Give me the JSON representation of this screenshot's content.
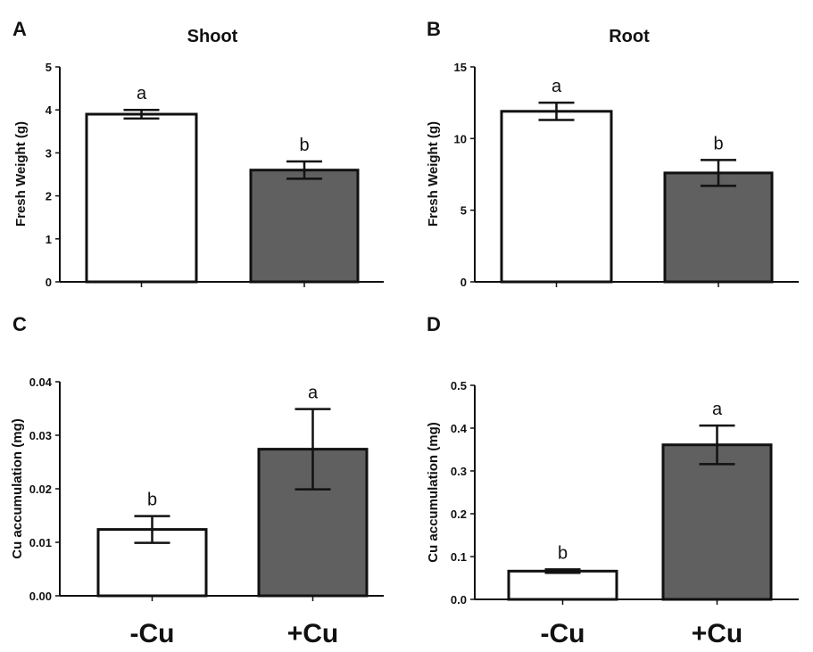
{
  "chart_data": [
    {
      "type": "bar",
      "panel": "A",
      "title": "Shoot",
      "ylabel": "Fresh Weight (g)",
      "categories": [
        "-Cu",
        "+Cu"
      ],
      "values": [
        3.9,
        2.6
      ],
      "errors": [
        0.1,
        0.2
      ],
      "significance": [
        "a",
        "b"
      ],
      "ylim": [
        0,
        5
      ],
      "yticks": [
        "0",
        "1",
        "2",
        "3",
        "4",
        "5"
      ],
      "colors": [
        "#ffffff",
        "#606060"
      ]
    },
    {
      "type": "bar",
      "panel": "B",
      "title": "Root",
      "ylabel": "Fresh Weight (g)",
      "categories": [
        "-Cu",
        "+Cu"
      ],
      "values": [
        11.9,
        7.6
      ],
      "errors": [
        0.6,
        0.9
      ],
      "significance": [
        "a",
        "b"
      ],
      "ylim": [
        0,
        15
      ],
      "yticks": [
        "0",
        "5",
        "10",
        "15"
      ],
      "colors": [
        "#ffffff",
        "#606060"
      ]
    },
    {
      "type": "bar",
      "panel": "C",
      "title": "",
      "ylabel": "Cu accumulation (mg)",
      "categories": [
        "-Cu",
        "+Cu"
      ],
      "values": [
        0.0124,
        0.0274
      ],
      "errors": [
        0.0025,
        0.0075
      ],
      "significance": [
        "b",
        "a"
      ],
      "ylim": [
        0,
        0.04
      ],
      "yticks": [
        "0.00",
        "0.01",
        "0.02",
        "0.03",
        "0.04"
      ],
      "colors": [
        "#ffffff",
        "#606060"
      ]
    },
    {
      "type": "bar",
      "panel": "D",
      "title": "",
      "ylabel": "Cu accumulation (mg)",
      "categories": [
        "-Cu",
        "+Cu"
      ],
      "values": [
        0.066,
        0.361
      ],
      "errors": [
        0.004,
        0.045
      ],
      "significance": [
        "b",
        "a"
      ],
      "ylim": [
        0,
        0.5
      ],
      "yticks": [
        "0.0",
        "0.1",
        "0.2",
        "0.3",
        "0.4",
        "0.5"
      ],
      "colors": [
        "#ffffff",
        "#606060"
      ]
    }
  ],
  "x_category_labels": [
    "-Cu",
    "+Cu"
  ]
}
